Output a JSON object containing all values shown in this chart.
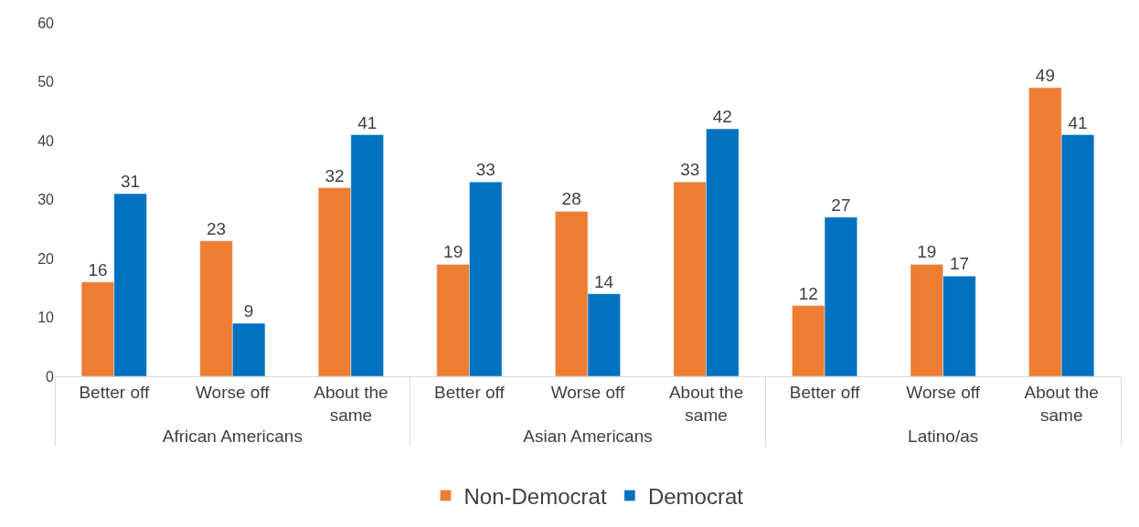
{
  "chart_data": {
    "type": "bar",
    "categories": [
      "Better off",
      "Worse off",
      "About the same",
      "Better off",
      "Worse off",
      "About the same",
      "Better off",
      "Worse off",
      "About the same"
    ],
    "annotations": [
      "African Americans",
      "Asian Americans",
      "Latino/as"
    ],
    "series": [
      {
        "name": "Non-Democrat",
        "color": "#ed7d31",
        "values": [
          16,
          23,
          32,
          19,
          28,
          33,
          12,
          19,
          49
        ]
      },
      {
        "name": "Democrat",
        "color": "#0070c0",
        "values": [
          31,
          9,
          41,
          33,
          14,
          42,
          27,
          17,
          41
        ]
      }
    ],
    "ylim": [
      0,
      60
    ],
    "yticks": [
      0,
      10,
      20,
      30,
      40,
      50,
      60
    ],
    "legend": "bottom",
    "data_labels": true
  }
}
